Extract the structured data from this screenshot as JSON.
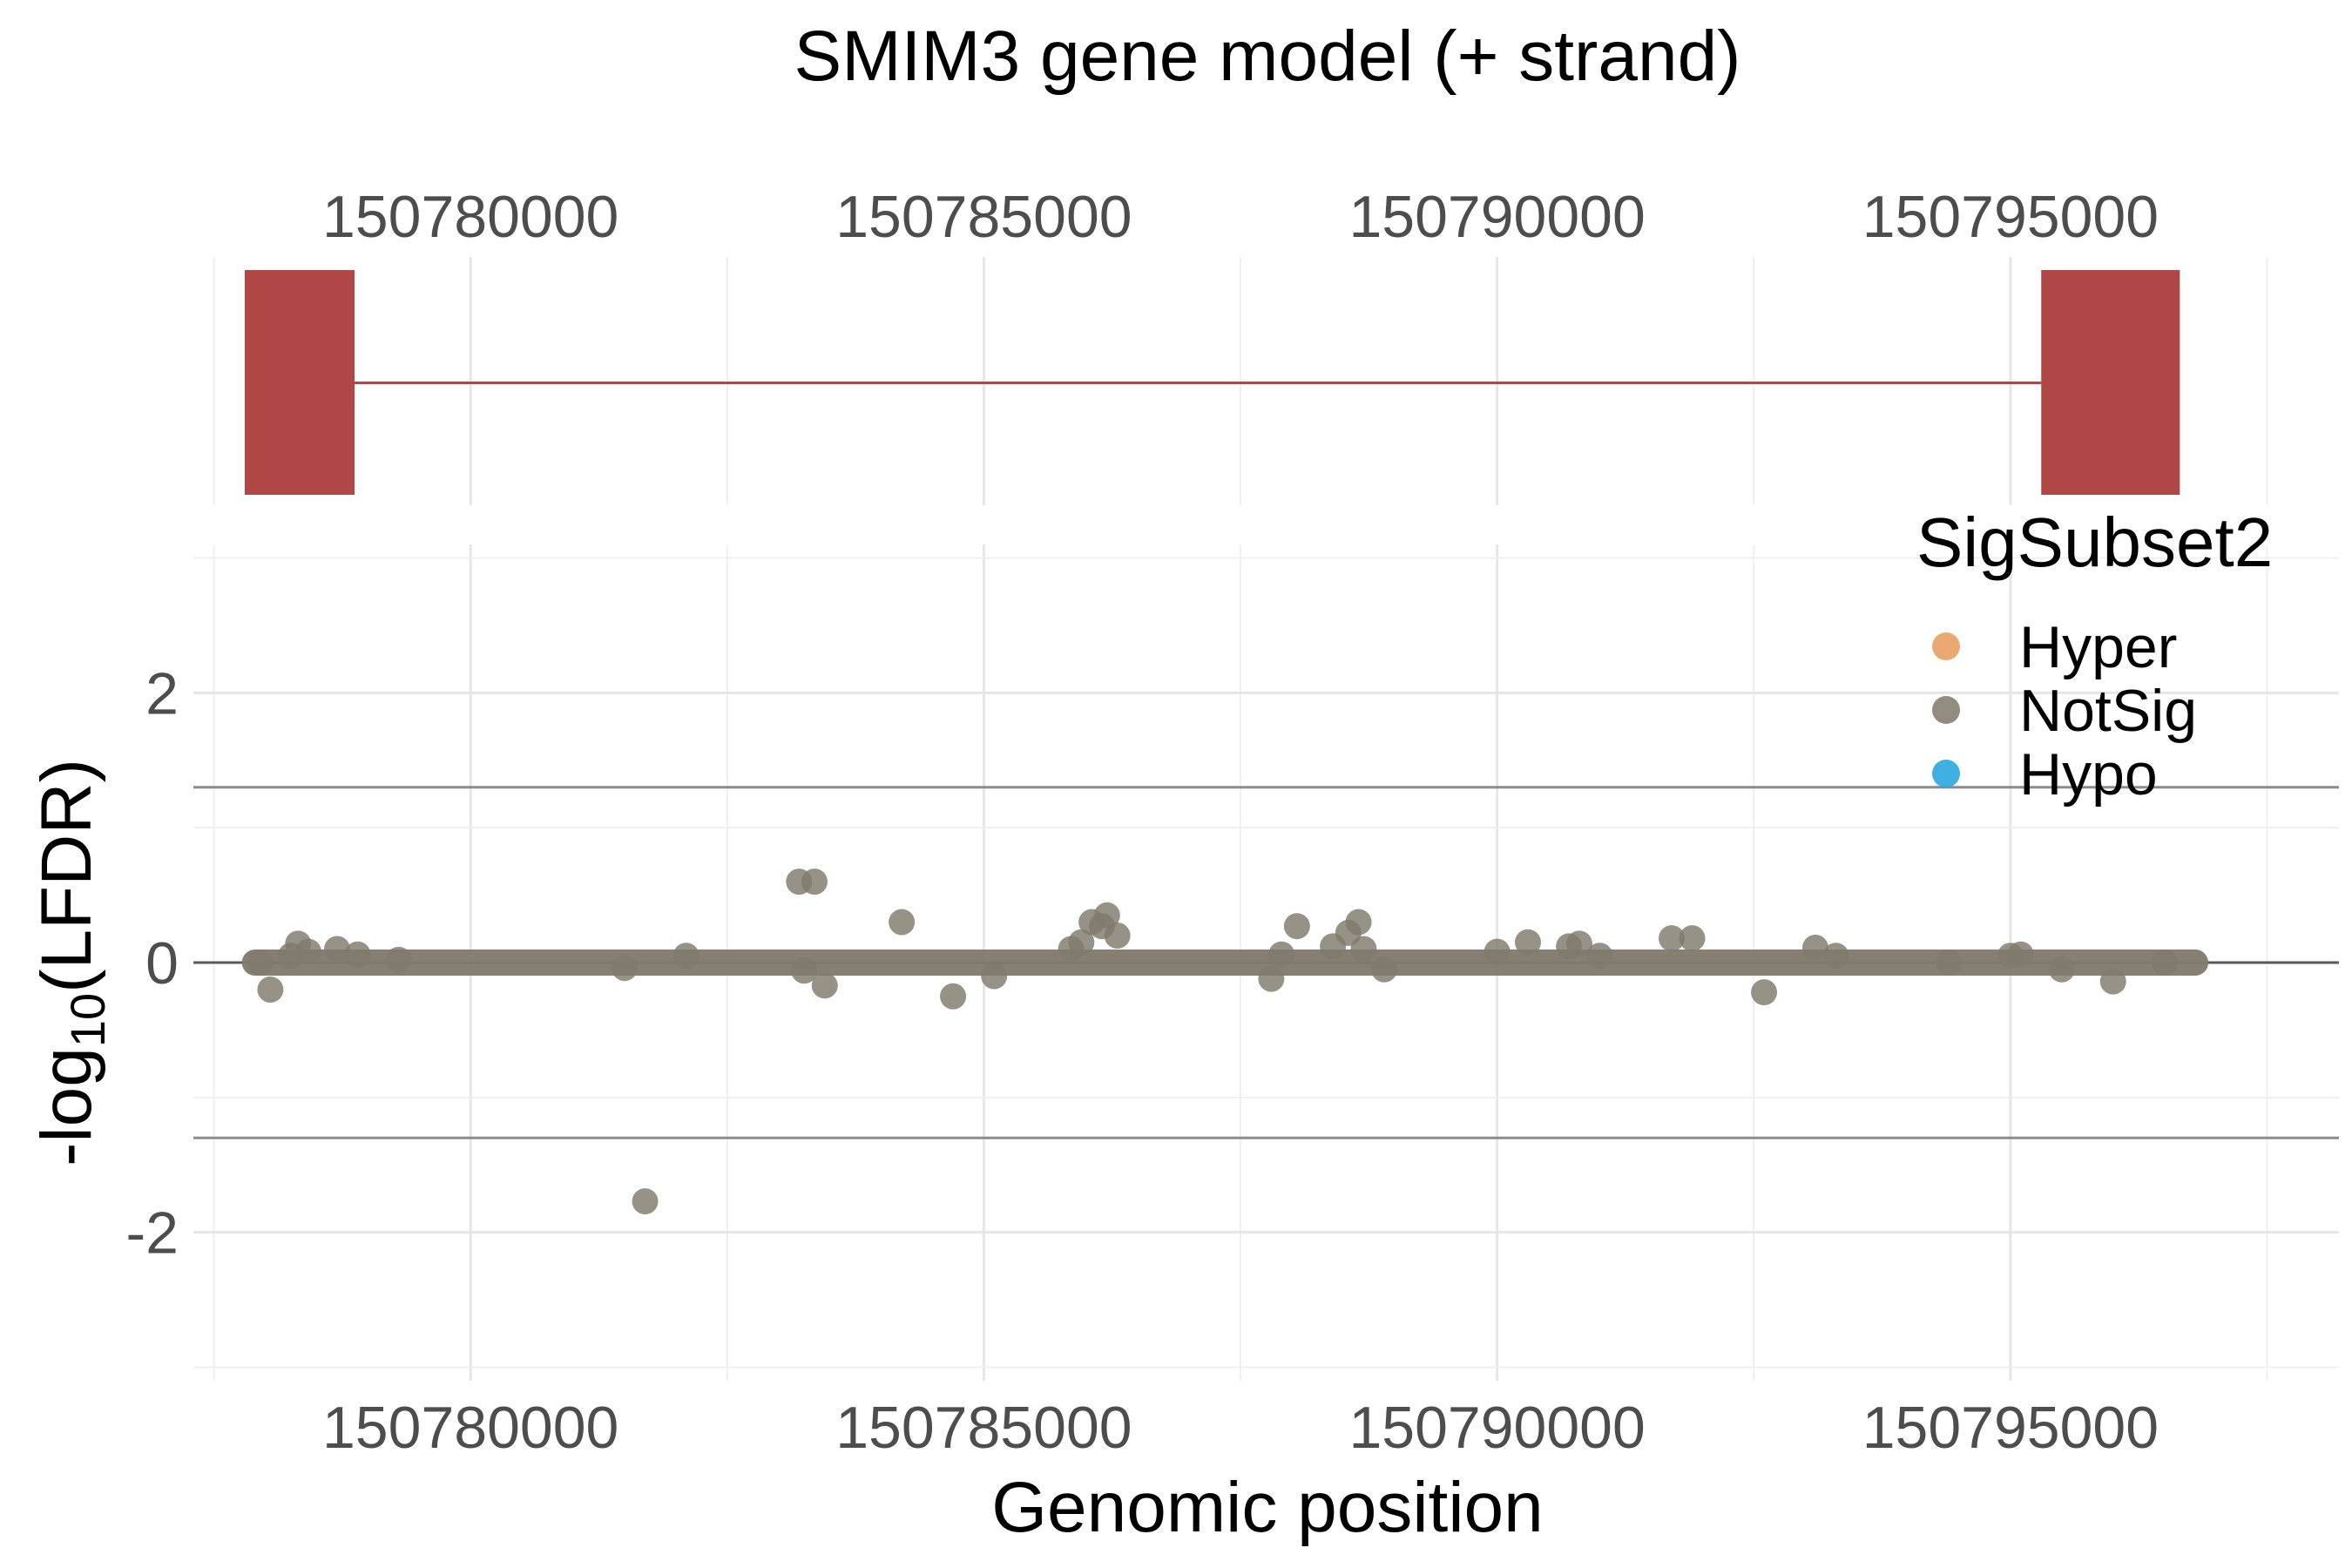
{
  "chart_data": {
    "type": "scatter",
    "title": "SMIM3 gene model (+ strand)",
    "xlabel": "Genomic position",
    "ylabel_main": "-log",
    "ylabel_sub": "10",
    "ylabel_tail": "(LFDR)",
    "xlim": [
      150777300,
      150798200
    ],
    "ylim": [
      -3.1,
      3.1
    ],
    "x_ticks": [
      150780000,
      150785000,
      150790000,
      150795000
    ],
    "x_tick_labels": [
      "150780000",
      "150785000",
      "150790000",
      "150795000"
    ],
    "y_ticks": [
      -2,
      0,
      2
    ],
    "y_tick_labels": [
      "-2",
      "0",
      "2"
    ],
    "threshold_lines": [
      1.3,
      -1.3
    ],
    "grid": true,
    "gene_model": {
      "strand": "+",
      "color": "#b04747",
      "exons": [
        [
          150777800,
          150778870
        ],
        [
          150795300,
          150796650
        ]
      ],
      "intron": [
        150778870,
        150795300
      ]
    },
    "legend": {
      "title": "SigSubset2",
      "position": "right",
      "entries": [
        {
          "label": "Hyper",
          "color": "#e8a060"
        },
        {
          "label": "NotSig",
          "color": "#858070"
        },
        {
          "label": "Hypo",
          "color": "#2aa7dc"
        }
      ]
    },
    "series": [
      {
        "name": "NotSig",
        "color": "#7f7a6b",
        "baseline": {
          "from": 150777900,
          "to": 150796800,
          "value": 0
        },
        "points": [
          [
            150777950,
            0.0
          ],
          [
            150778050,
            -0.2
          ],
          [
            150778250,
            0.05
          ],
          [
            150778320,
            0.14
          ],
          [
            150778420,
            0.08
          ],
          [
            150778700,
            0.1
          ],
          [
            150778900,
            0.06
          ],
          [
            150779300,
            0.02
          ],
          [
            150781500,
            -0.04
          ],
          [
            150781700,
            -1.77
          ],
          [
            150782100,
            0.05
          ],
          [
            150783200,
            0.6
          ],
          [
            150783350,
            0.6
          ],
          [
            150783250,
            -0.06
          ],
          [
            150783450,
            -0.17
          ],
          [
            150784200,
            0.3
          ],
          [
            150784700,
            -0.25
          ],
          [
            150785100,
            -0.1
          ],
          [
            150785850,
            0.1
          ],
          [
            150785950,
            0.15
          ],
          [
            150786050,
            0.3
          ],
          [
            150786150,
            0.27
          ],
          [
            150786200,
            0.35
          ],
          [
            150786300,
            0.2
          ],
          [
            150787800,
            -0.12
          ],
          [
            150787900,
            0.06
          ],
          [
            150788050,
            0.27
          ],
          [
            150788400,
            0.12
          ],
          [
            150788550,
            0.22
          ],
          [
            150788650,
            0.3
          ],
          [
            150788700,
            0.1
          ],
          [
            150788900,
            -0.05
          ],
          [
            150790000,
            0.08
          ],
          [
            150790300,
            0.15
          ],
          [
            150790700,
            0.12
          ],
          [
            150790800,
            0.14
          ],
          [
            150791000,
            0.05
          ],
          [
            150791700,
            0.18
          ],
          [
            150791900,
            0.18
          ],
          [
            150792600,
            -0.22
          ],
          [
            150793100,
            0.11
          ],
          [
            150793300,
            0.05
          ],
          [
            150794400,
            0.0
          ],
          [
            150795000,
            0.05
          ],
          [
            150795100,
            0.06
          ],
          [
            150795500,
            -0.05
          ],
          [
            150796000,
            -0.14
          ],
          [
            150796500,
            0.0
          ]
        ]
      }
    ]
  }
}
